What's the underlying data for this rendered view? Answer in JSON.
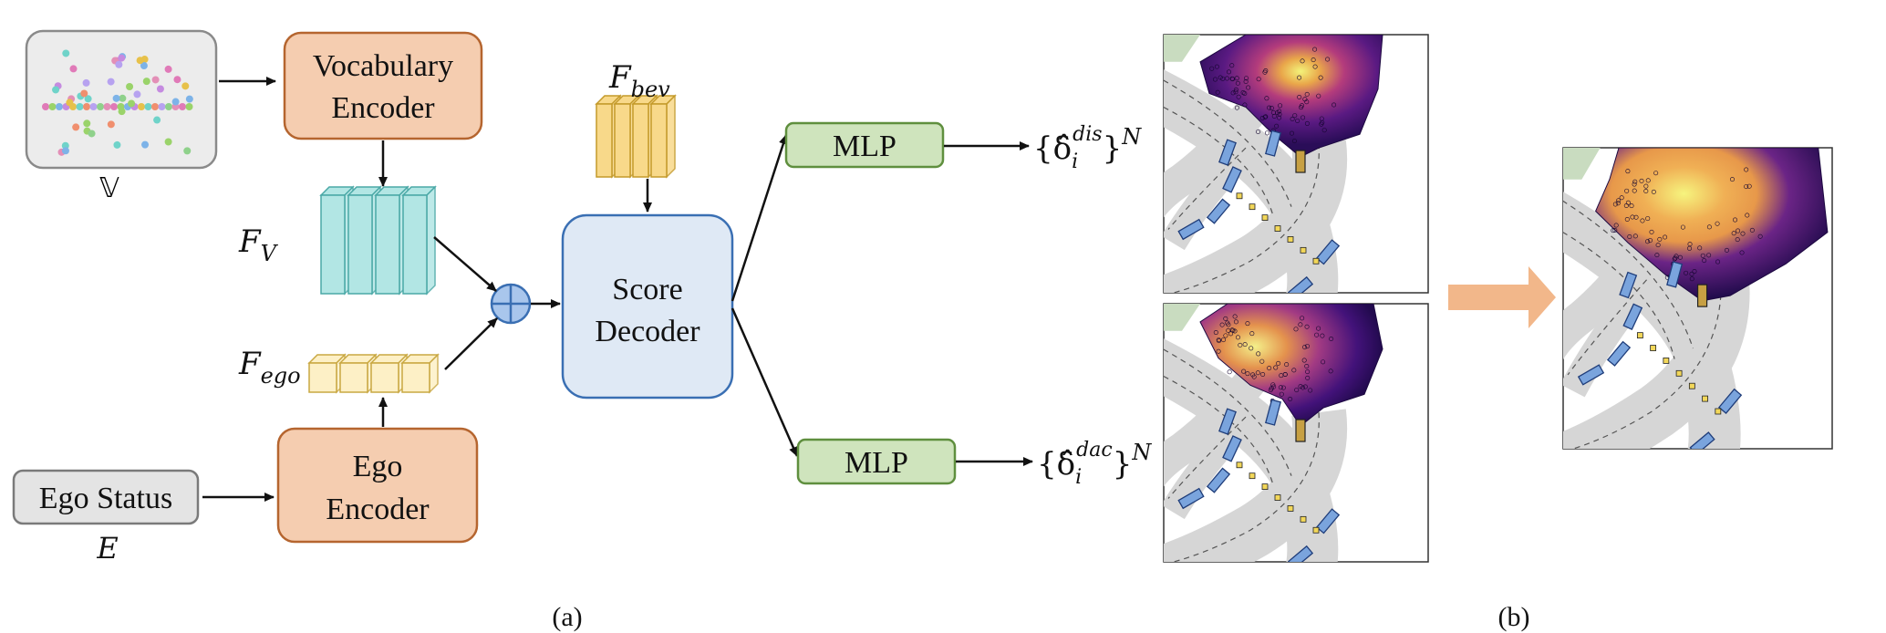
{
  "panel_a": {
    "vocab_symbol": "𝕍",
    "vocab_encoder": {
      "line1": "Vocabulary",
      "line2": "Encoder"
    },
    "fv_label": {
      "main": "F",
      "sub": "V"
    },
    "fego_label": {
      "main": "F",
      "sub": "ego"
    },
    "fbev_label": {
      "main": "F",
      "sub": "bev"
    },
    "ego_status": "Ego Status",
    "ego_status_symbol": "E",
    "ego_encoder": {
      "line1": "Ego",
      "line2": "Encoder"
    },
    "score_decoder": {
      "line1": "Score",
      "line2": "Decoder"
    },
    "mlp_top": "MLP",
    "mlp_bottom": "MLP",
    "out_dis": {
      "open": "{",
      "delta": "δ̂",
      "sub": "i",
      "sup": "dis",
      "close": "}",
      "pow": "N"
    },
    "out_dac": {
      "open": "{",
      "delta": "δ̂",
      "sub": "i",
      "sup": "dac",
      "close": "}",
      "pow": "N"
    },
    "caption": "(a)"
  },
  "panel_b": {
    "caption": "(b)"
  },
  "colors": {
    "encoder_fill": "#f5cdb0",
    "encoder_stroke": "#b5652f",
    "decoder_fill": "#dfe9f5",
    "decoder_stroke": "#3a6fb3",
    "mlp_fill": "#cfe4bd",
    "mlp_stroke": "#5f8f3e",
    "fv_fill": "#b2e6e4",
    "fv_stroke": "#4aa8a6",
    "fego_fill": "#fdf0c6",
    "fbev_fill": "#f8d98a",
    "status_fill": "#e4e4e4",
    "arrow_big": "#f2b78a"
  }
}
